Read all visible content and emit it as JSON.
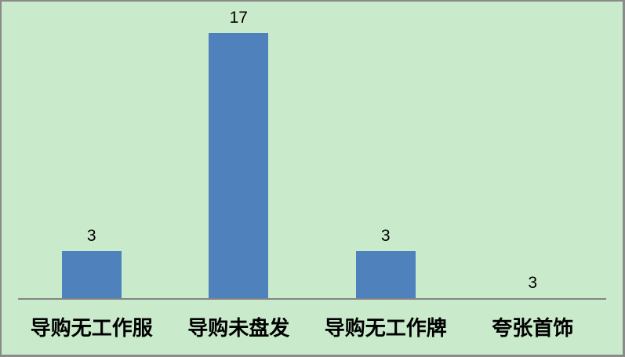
{
  "chart_data": {
    "type": "bar",
    "title": "",
    "xlabel": "",
    "ylabel": "",
    "categories": [
      "导购无工作服",
      "导购未盘发",
      "导购无工作牌",
      "夸张首饰"
    ],
    "values": [
      3,
      17,
      3,
      3
    ],
    "data_labels": [
      "3",
      "17",
      "3",
      "3"
    ],
    "bar_rendered": [
      true,
      true,
      true,
      false
    ],
    "ylim": [
      0,
      17
    ],
    "grid": false,
    "legend_position": "none",
    "colors": {
      "bar": "#4f81bd",
      "plot_background": "#c9eacb",
      "axis_line": "#858585",
      "frame_border": "#8a8a8a",
      "label_text": "#000000"
    }
  }
}
